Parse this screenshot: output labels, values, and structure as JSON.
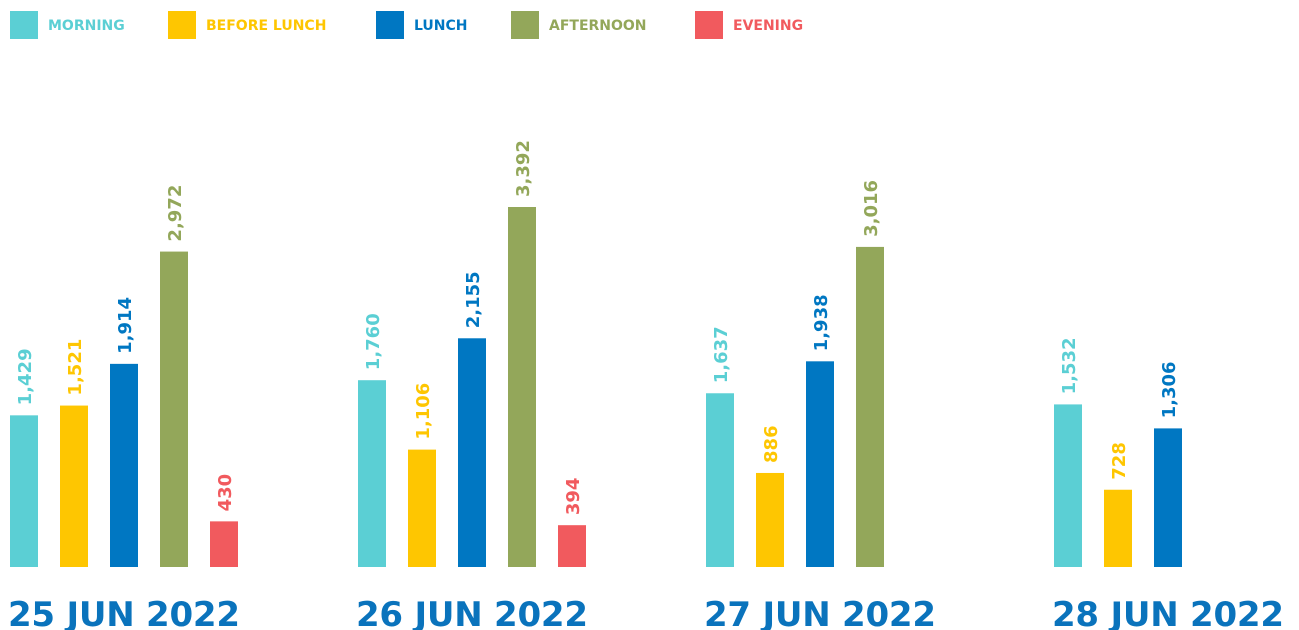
{
  "chart_data": {
    "type": "bar",
    "categories": [
      "25 JUN 2022",
      "26 JUN 2022",
      "27 JUN 2022",
      "28 JUN 2022"
    ],
    "series": [
      {
        "name": "MORNING",
        "color": "#5bcfd4",
        "values": [
          1429,
          1760,
          1637,
          1532
        ],
        "value_labels": [
          "1,429",
          "1,760",
          "1,637",
          "1,532"
        ]
      },
      {
        "name": "BEFORE LUNCH",
        "color": "#fec601",
        "values": [
          1521,
          1106,
          886,
          728
        ],
        "value_labels": [
          "1,521",
          "1,106",
          "886",
          "728"
        ]
      },
      {
        "name": "LUNCH",
        "color": "#0077c2",
        "values": [
          1914,
          2155,
          1938,
          1306
        ],
        "value_labels": [
          "1,914",
          "2,155",
          "1,938",
          "1,306"
        ]
      },
      {
        "name": "AFTERNOON",
        "color": "#93a75a",
        "values": [
          2972,
          3392,
          3016,
          null
        ],
        "value_labels": [
          "2,972",
          "3,392",
          "3,016",
          null
        ]
      },
      {
        "name": "EVENING",
        "color": "#f15a5e",
        "values": [
          430,
          394,
          null,
          null
        ],
        "value_labels": [
          "430",
          "394",
          null,
          null
        ]
      }
    ]
  }
}
